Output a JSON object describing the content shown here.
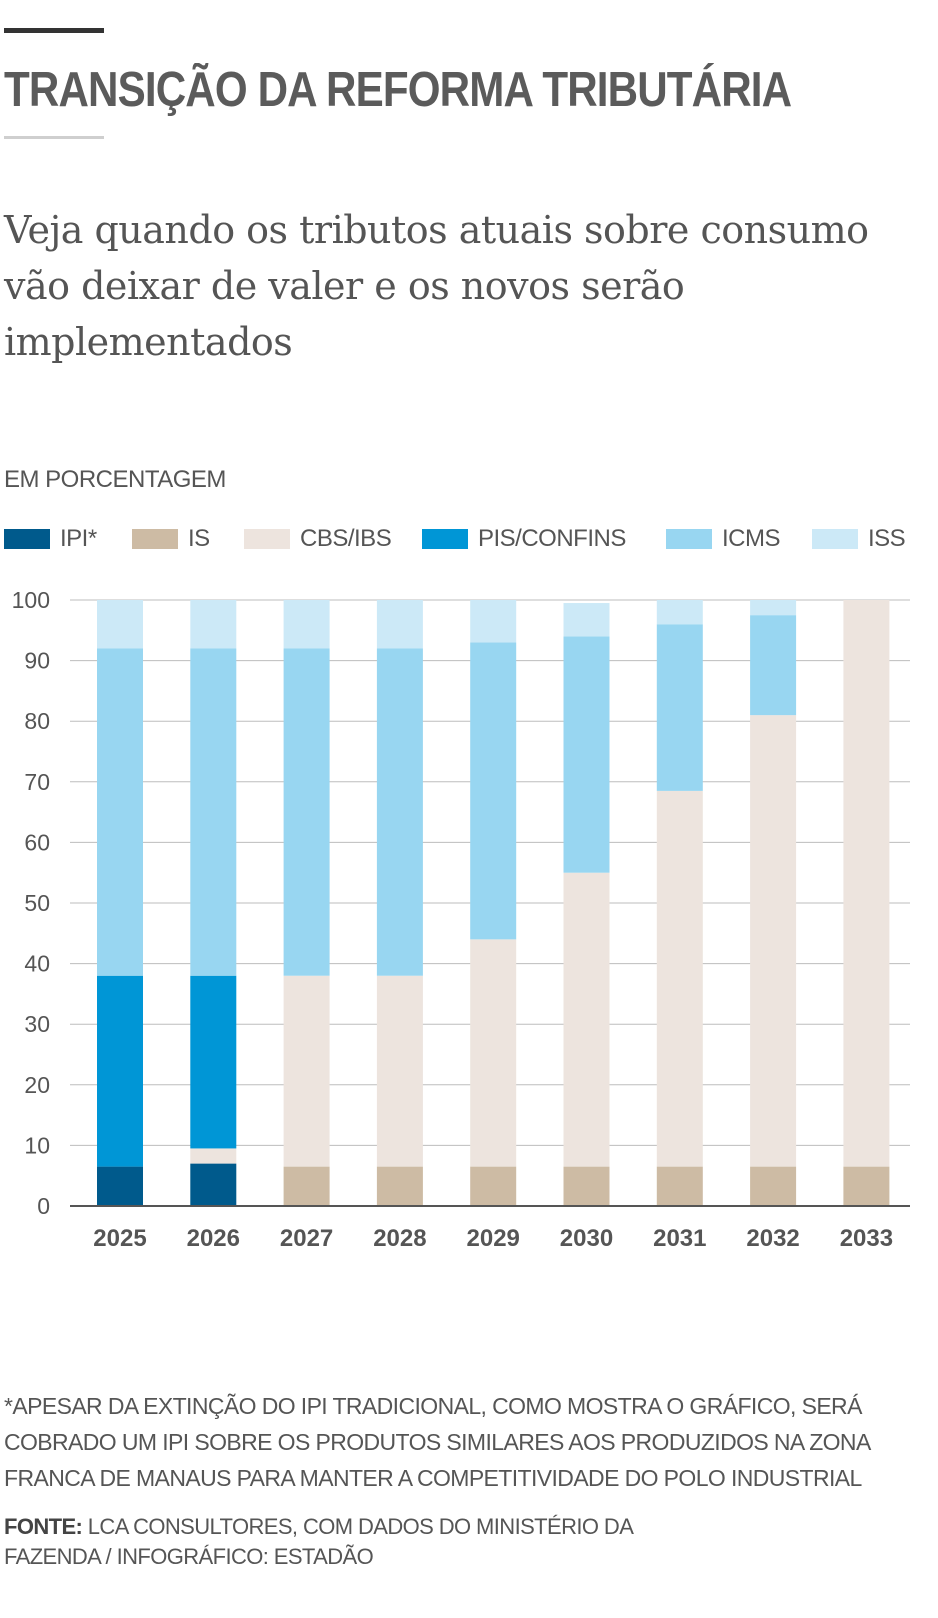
{
  "header": {
    "title": "TRANSIÇÃO DA REFORMA TRIBUTÁRIA",
    "subtitle": "Veja quando os tributos atuais sobre consumo vão deixar de valer e os novos serão implementados",
    "unit_label": "EM PORCENTAGEM"
  },
  "footer": {
    "note": "*APESAR DA EXTINÇÃO DO IPI TRADICIONAL, COMO MOSTRA O GRÁFICO, SERÁ COBRADO UM IPI SOBRE OS PRODUTOS SIMILARES AOS PRODUZIDOS NA ZONA FRANCA DE MANAUS PARA MANTER A COMPETITIVIDADE DO POLO INDUSTRIAL",
    "source_label": "FONTE:",
    "source_text": "LCA CONSULTORES, COM DADOS DO MINISTÉRIO DA FAZENDA / INFOGRÁFICO: ESTADÃO"
  },
  "chart_data": {
    "type": "bar",
    "stacked": true,
    "categories": [
      "2025",
      "2026",
      "2027",
      "2028",
      "2029",
      "2030",
      "2031",
      "2032",
      "2033"
    ],
    "ylim": [
      0,
      100
    ],
    "yticks": [
      0,
      10,
      20,
      30,
      40,
      50,
      60,
      70,
      80,
      90,
      100
    ],
    "grid": true,
    "legend_position": "top",
    "series": [
      {
        "name": "IPI*",
        "color": "#005a8c",
        "values": [
          6.5,
          7,
          0,
          0,
          0,
          0,
          0,
          0,
          0
        ]
      },
      {
        "name": "IS",
        "color": "#cdbba4",
        "values": [
          0,
          0,
          6.5,
          6.5,
          6.5,
          6.5,
          6.5,
          6.5,
          6.5
        ]
      },
      {
        "name": "CBS/IBS",
        "color": "#ede4de",
        "values": [
          0,
          2.5,
          31.5,
          31.5,
          37.5,
          48.5,
          62,
          74.5,
          93.5
        ]
      },
      {
        "name": "PIS/CONFINS",
        "color": "#0096d6",
        "values": [
          31.5,
          28.5,
          0,
          0,
          0,
          0,
          0,
          0,
          0
        ]
      },
      {
        "name": "ICMS",
        "color": "#98d6f1",
        "values": [
          54,
          54,
          54,
          54,
          49,
          39,
          27.5,
          16.5,
          0
        ]
      },
      {
        "name": "ISS",
        "color": "#cce9f7",
        "values": [
          8,
          8,
          8,
          8,
          7,
          5.5,
          4,
          2.5,
          0
        ]
      }
    ]
  }
}
